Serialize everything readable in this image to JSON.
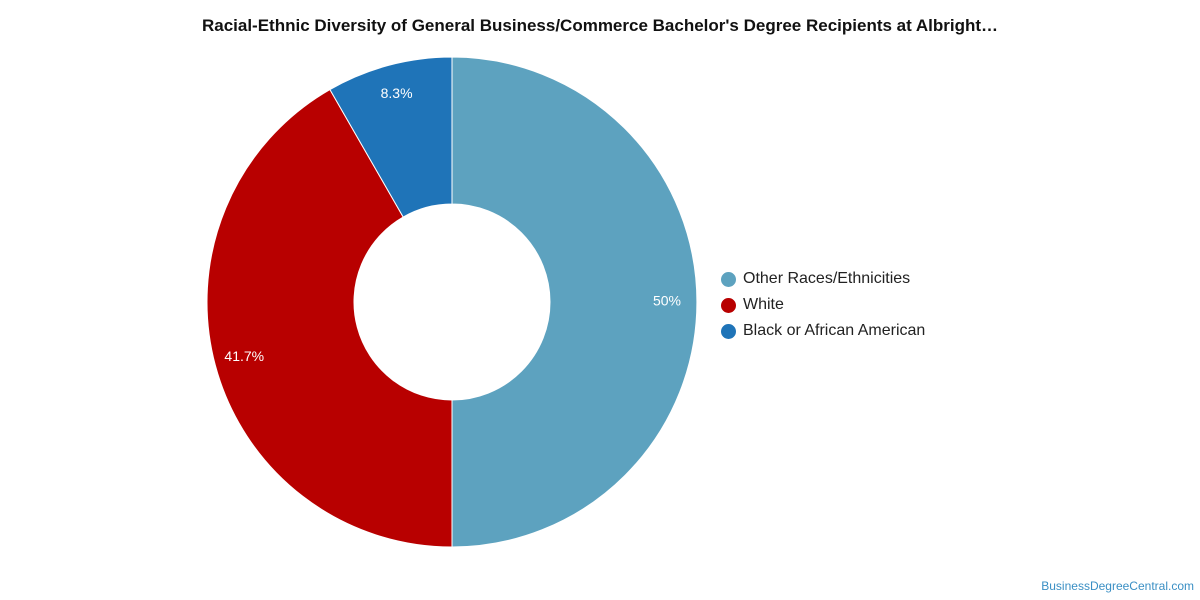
{
  "chart_data": {
    "type": "pie",
    "title": "Racial-Ethnic Diversity of General Business/Commerce Bachelor's Degree Recipients at Albright…",
    "donut": true,
    "legend_position": "right",
    "slices": [
      {
        "label": "Other Races/Ethnicities",
        "value": 50,
        "display": "50%",
        "color": "#5da2bf"
      },
      {
        "label": "White",
        "value": 41.7,
        "display": "41.7%",
        "color": "#b80000"
      },
      {
        "label": "Black or African American",
        "value": 8.3,
        "display": "8.3%",
        "color": "#1f74b8"
      }
    ]
  },
  "watermark": "BusinessDegreeCentral.com"
}
